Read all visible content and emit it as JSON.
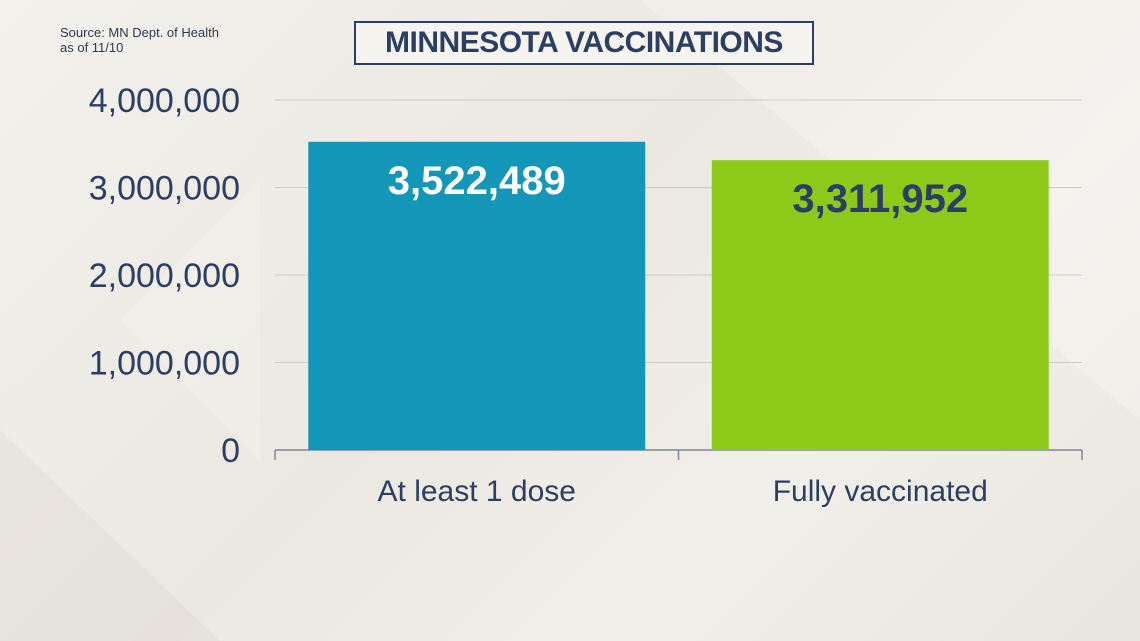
{
  "source": {
    "line1": "Source: MN Dept. of Health",
    "line2": "as of 11/10"
  },
  "chart_data": {
    "type": "bar",
    "title": "MINNESOTA VACCINATIONS",
    "categories": [
      "At least 1 dose",
      "Fully vaccinated"
    ],
    "values": [
      3522489,
      3311952
    ],
    "data_labels": [
      "3,522,489",
      "3,311,952"
    ],
    "ylim": [
      0,
      4000000
    ],
    "yticks": [
      0,
      1000000,
      2000000,
      3000000,
      4000000
    ],
    "ytick_labels": [
      "0",
      "1,000,000",
      "2,000,000",
      "3,000,000",
      "4,000,000"
    ],
    "grid": true,
    "colors": [
      "#1396b7",
      "#8cc919"
    ],
    "label_colors": [
      "#ffffff",
      "#2c3e63"
    ],
    "xlabel": "",
    "ylabel": ""
  }
}
